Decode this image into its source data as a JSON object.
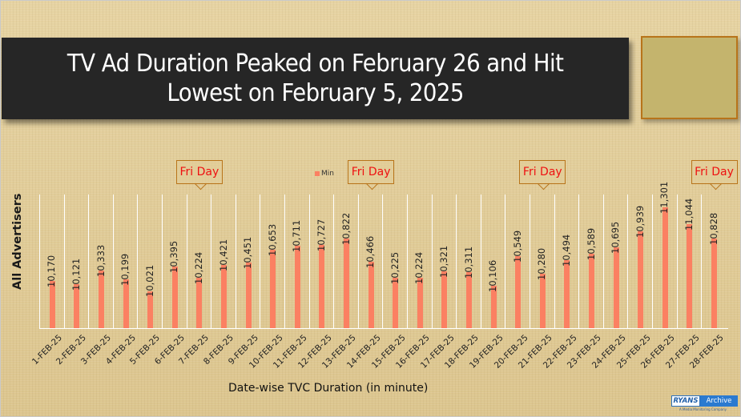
{
  "title": {
    "line1": "TV Ad Duration Peaked on February 26 and Hit",
    "line2": "Lowest on February 5, 2025"
  },
  "colors": {
    "bar": "#fb8062",
    "title_bg": "#262626",
    "side_box": "#c4b46d",
    "callout_border": "#b8741a",
    "callout_text": "#ee1111"
  },
  "callout_label": "Fri Day",
  "logo": {
    "brand": "RYANS",
    "name": "Archive",
    "tagline": "A Media Monitoring Company"
  },
  "chart_data": {
    "type": "bar",
    "title": "TV Ad Duration Peaked on February 26 and Hit Lowest on February 5, 2025",
    "xlabel": "Date-wise TVC Duration (in minute)",
    "ylabel": "All Advertisers",
    "legend": [
      "Min"
    ],
    "legend_position": "top",
    "grid": "vertical",
    "categories": [
      "1-FEB-25",
      "2-FEB-25",
      "3-FEB-25",
      "4-FEB-25",
      "5-FEB-25",
      "6-FEB-25",
      "7-FEB-25",
      "8-FEB-25",
      "9-FEB-25",
      "10-FEB-25",
      "11-FEB-25",
      "12-FEB-25",
      "13-FEB-25",
      "14-FEB-25",
      "15-FEB-25",
      "16-FEB-25",
      "17-FEB-25",
      "18-FEB-25",
      "19-FEB-25",
      "20-FEB-25",
      "21-FEB-25",
      "22-FEB-25",
      "23-FEB-25",
      "24-FEB-25",
      "25-FEB-25",
      "26-FEB-25",
      "27-FEB-25",
      "28-FEB-25"
    ],
    "series": [
      {
        "name": "Min",
        "values": [
          10170,
          10121,
          10333,
          10199,
          10021,
          10395,
          10224,
          10421,
          10451,
          10653,
          10711,
          10727,
          10822,
          10466,
          10225,
          10224,
          10321,
          10311,
          10106,
          10549,
          10280,
          10494,
          10589,
          10695,
          10939,
          11301,
          11044,
          10828
        ]
      }
    ],
    "value_labels": [
      "10,170",
      "10,121",
      "10,333",
      "10,199",
      "10,021",
      "10,395",
      "10,224",
      "10,421",
      "10,451",
      "10,653",
      "10,711",
      "10,727",
      "10,822",
      "10,466",
      "10,225",
      "10,224",
      "10,321",
      "10,311",
      "10,106",
      "10,549",
      "10,280",
      "10,494",
      "10,589",
      "10,695",
      "10,939",
      "11,301",
      "11,044",
      "10,828"
    ],
    "annotations": [
      {
        "text": "Fri Day",
        "category": "7-FEB-25"
      },
      {
        "text": "Fri Day",
        "category": "14-FEB-25"
      },
      {
        "text": "Fri Day",
        "category": "21-FEB-25"
      },
      {
        "text": "Fri Day",
        "category": "28-FEB-25"
      }
    ],
    "ylim": [
      9450,
      11500
    ]
  }
}
